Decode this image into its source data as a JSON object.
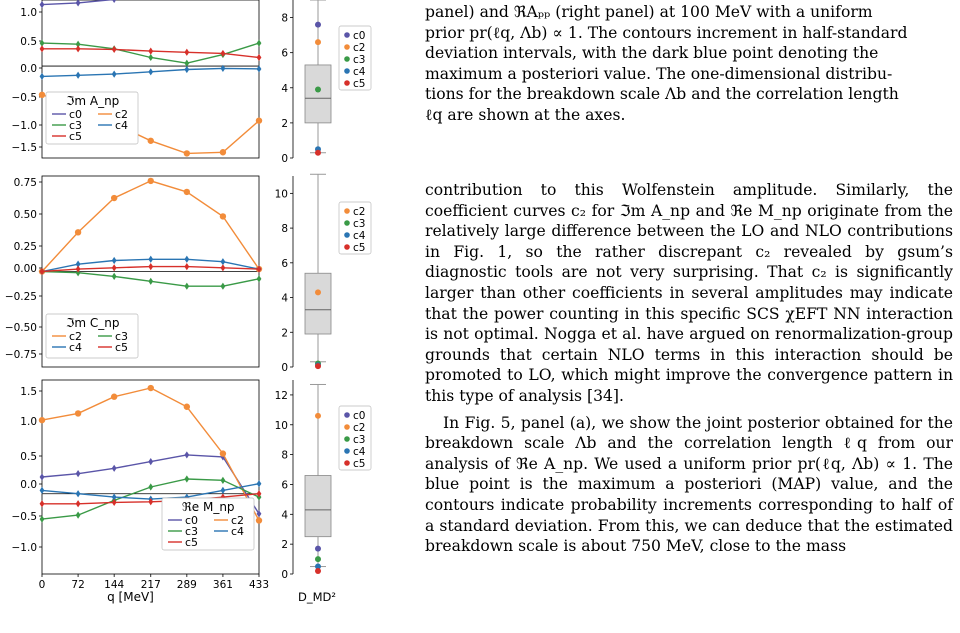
{
  "caption": {
    "line1": "panel) and ℜAₚₚ (right panel) at 100 MeV with a uniform",
    "line2": "prior pr(ℓq, Λb) ∝ 1. The contours increment in half-standard",
    "line3": "deviation intervals, with the dark blue point denoting the",
    "line4": "maximum a posteriori value. The one-dimensional distribu-",
    "line5": "tions for the breakdown scale Λb and the correlation length",
    "line6": "ℓq are shown at the axes."
  },
  "body_text": {
    "p1": "contribution to this Wolfenstein amplitude. Similarly, the coefficient curves c₂ for ℑm A_np and ℜe M_np originate from the relatively large difference between the LO and NLO contributions in Fig. 1, so the rather discrepant c₂ revealed by gsum’s diagnostic tools are not very surprising. That c₂ is significantly larger than other coefficients in several amplitudes may indicate that the power counting in this specific SCS χEFT NN interaction is not optimal. Nogga et al. have argued on renormalization-group grounds that certain NLO terms in this interaction should be promoted to LO, which might improve the convergence pattern in this type of analysis [34].",
    "p2": "In Fig. 5, panel (a), we show the joint posterior obtained for the breakdown scale Λb and the correlation length ℓq from our analysis of ℜe A_np. We used a uniform prior pr(ℓq, Λb) ∝ 1. The blue point is the maximum a posteriori (MAP) value, and the contours indicate probability increments corresponding to half of a standard deviation. From this, we can deduce that the estimated breakdown scale is about 750 MeV, close to the mass"
  },
  "colors": {
    "c0": "#5a55a8",
    "c2": "#f28c3a",
    "c3": "#3a9a47",
    "c4": "#2a75b3",
    "c5": "#d7302a"
  },
  "chart_data": [
    {
      "type": "line",
      "legend_title": "ℑm A_np",
      "xlim": [
        0,
        433
      ],
      "ylim": [
        -1.6,
        1.15
      ],
      "yticks": [
        "1.0",
        "0.5",
        "0.0",
        "−0.5",
        "−1.0",
        "−1.5"
      ],
      "x": [
        0,
        72,
        144,
        217,
        289,
        361,
        433
      ],
      "series": [
        {
          "name": "c0",
          "values": [
            1.07,
            1.1,
            1.16,
            1.22,
            1.28,
            1.33,
            1.38
          ]
        },
        {
          "name": "c2",
          "values": [
            -0.5,
            -0.7,
            -1.0,
            -1.3,
            -1.52,
            -1.5,
            -0.95
          ]
        },
        {
          "name": "c3",
          "values": [
            0.4,
            0.38,
            0.3,
            0.15,
            0.05,
            0.2,
            0.4
          ]
        },
        {
          "name": "c4",
          "values": [
            -0.18,
            -0.16,
            -0.14,
            -0.1,
            -0.06,
            -0.04,
            -0.05
          ]
        },
        {
          "name": "c5",
          "values": [
            0.3,
            0.3,
            0.29,
            0.26,
            0.24,
            0.22,
            0.15
          ]
        }
      ],
      "box": {
        "ylim": [
          0,
          9
        ],
        "yticks": [
          "8",
          "6",
          "4",
          "2",
          "0"
        ],
        "q1": 2.0,
        "median": 3.4,
        "q3": 5.3,
        "whisker_low": 0.3,
        "whisker_high": 9.0,
        "points": [
          {
            "name": "c0",
            "value": 7.6
          },
          {
            "name": "c2",
            "value": 6.6
          },
          {
            "name": "c3",
            "value": 3.9
          },
          {
            "name": "c4",
            "value": 0.5
          },
          {
            "name": "c5",
            "value": 0.3
          }
        ]
      }
    },
    {
      "type": "line",
      "legend_title": "ℑm C_np",
      "xlim": [
        0,
        433
      ],
      "ylim": [
        -0.78,
        0.78
      ],
      "yticks": [
        "0.75",
        "0.50",
        "0.25",
        "0.00",
        "−0.25",
        "−0.50",
        "−0.75"
      ],
      "x": [
        0,
        72,
        144,
        217,
        289,
        361,
        433
      ],
      "series": [
        {
          "name": "c2",
          "values": [
            0.0,
            0.32,
            0.6,
            0.74,
            0.65,
            0.45,
            0.02
          ]
        },
        {
          "name": "c3",
          "values": [
            0.0,
            -0.01,
            -0.04,
            -0.08,
            -0.12,
            -0.12,
            -0.06
          ]
        },
        {
          "name": "c4",
          "values": [
            0.0,
            0.06,
            0.09,
            0.1,
            0.1,
            0.08,
            0.02
          ]
        },
        {
          "name": "c5",
          "values": [
            0.0,
            0.02,
            0.03,
            0.04,
            0.04,
            0.03,
            0.02
          ]
        }
      ],
      "box": {
        "ylim": [
          0,
          11
        ],
        "yticks": [
          "10",
          "8",
          "6",
          "4",
          "2",
          "0"
        ],
        "q1": 1.9,
        "median": 3.3,
        "q3": 5.4,
        "whisker_low": 0.3,
        "whisker_high": 11.1,
        "points": [
          {
            "name": "c2",
            "value": 4.3
          },
          {
            "name": "c3",
            "value": 0.2
          },
          {
            "name": "c4",
            "value": 0.1
          },
          {
            "name": "c5",
            "value": 0.05
          }
        ]
      }
    },
    {
      "type": "line",
      "legend_title": "ℜe M_np",
      "xlabel": "q [MeV]",
      "box_xlabel": "D_MD²",
      "xlim": [
        0,
        433
      ],
      "ylim": [
        -1.2,
        1.7
      ],
      "xticks": [
        "0",
        "72",
        "144",
        "217",
        "289",
        "361",
        "433"
      ],
      "yticks": [
        "1.5",
        "1.0",
        "0.5",
        "0.0",
        "−0.5",
        "−1.0"
      ],
      "x": [
        0,
        72,
        144,
        217,
        289,
        361,
        433
      ],
      "series": [
        {
          "name": "c0",
          "values": [
            0.25,
            0.3,
            0.38,
            0.48,
            0.58,
            0.55,
            -0.3
          ]
        },
        {
          "name": "c2",
          "values": [
            1.1,
            1.2,
            1.45,
            1.58,
            1.3,
            0.6,
            -0.4
          ]
        },
        {
          "name": "c3",
          "values": [
            -0.38,
            -0.32,
            -0.1,
            0.1,
            0.22,
            0.2,
            -0.05
          ]
        },
        {
          "name": "c4",
          "values": [
            0.05,
            0.0,
            -0.05,
            -0.08,
            -0.05,
            0.05,
            0.15
          ]
        },
        {
          "name": "c5",
          "values": [
            -0.15,
            -0.15,
            -0.13,
            -0.12,
            -0.1,
            -0.05,
            0.0
          ]
        }
      ],
      "box": {
        "ylim": [
          0,
          13
        ],
        "yticks": [
          "12",
          "10",
          "8",
          "6",
          "4",
          "2",
          "0"
        ],
        "q1": 2.5,
        "median": 4.3,
        "q3": 6.6,
        "whisker_low": 0.5,
        "whisker_high": 12.7,
        "points": [
          {
            "name": "c0",
            "value": 1.7
          },
          {
            "name": "c2",
            "value": 10.6
          },
          {
            "name": "c3",
            "value": 1.0
          },
          {
            "name": "c4",
            "value": 0.5
          },
          {
            "name": "c5",
            "value": 0.2
          }
        ]
      }
    }
  ]
}
